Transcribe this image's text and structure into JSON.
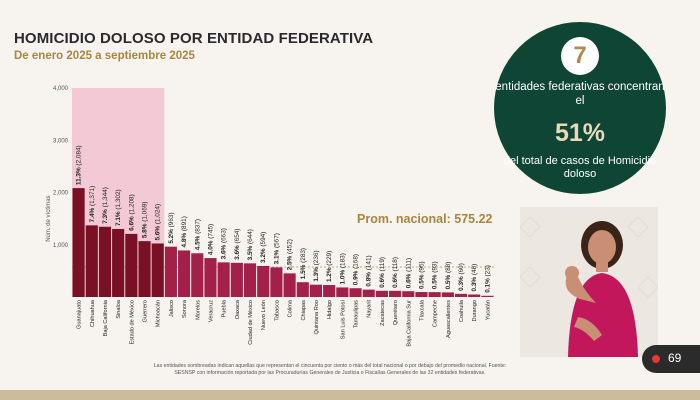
{
  "header": {
    "title": "HOMICIDIO DOLOSO POR ENTIDAD FEDERATIVA",
    "subtitle": "De enero 2025 a septiembre 2025"
  },
  "badge": {
    "number": "7",
    "line1": "entidades federativas concentran el",
    "percent": "51%",
    "line2": "del total de casos de Homicidio doloso"
  },
  "average_label": "Prom. nacional: 575.22",
  "footnote": "Las entidades sombreadas indican aquellas que representan el cincuenta por ciento o más del total nacional o por debajo del promedio nacional. Fuente: SESNSP con información reportada por las Procuradurías Generales de Justicia o Fiscalías Generales de las 32 entidades federativas.",
  "live_viewers": "69",
  "colors": {
    "bar_dark": "#7a1026",
    "bar_main": "#a3204a",
    "highlight": "#f2c9d4",
    "badge_bg": "#0f4535",
    "gold": "#a8863f"
  },
  "chart_data": {
    "type": "bar",
    "ylabel": "Núm. de víctimas",
    "ylim": [
      0,
      4000
    ],
    "yticks": [
      "1,000",
      "2,000",
      "3,000",
      "4,000"
    ],
    "average": 575.22,
    "highlighted_count": 7,
    "categories": [
      "Guanajuato",
      "Chihuahua",
      "Baja California",
      "Sinaloa",
      "Estado de México",
      "Guerrero",
      "Michoacán",
      "Jalisco",
      "Sonora",
      "Morelos",
      "Veracruz",
      "Puebla",
      "Oaxaca",
      "Ciudad de México",
      "Nuevo León",
      "Tabasco",
      "Colima",
      "Chiapas",
      "Quintana Roo",
      "Hidalgo",
      "San Luis Potosí",
      "Tamaulipas",
      "Nayarit",
      "Zacatecas",
      "Querétaro",
      "Baja California Sur",
      "Tlaxcala",
      "Campeche",
      "Aguascalientes",
      "Coahuila",
      "Durango",
      "Yucatán"
    ],
    "values": [
      2084,
      1371,
      1344,
      1302,
      1208,
      1069,
      1024,
      963,
      891,
      837,
      745,
      663,
      654,
      644,
      594,
      567,
      452,
      283,
      236,
      229,
      183,
      168,
      141,
      119,
      118,
      111,
      95,
      93,
      88,
      60,
      48,
      23
    ],
    "labels": [
      "11.3% (2,084)",
      "7.4% (1,371)",
      "7.3% (1,344)",
      "7.1% (1,302)",
      "6.6% (1,208)",
      "5.8% (1,069)",
      "5.6% (1,024)",
      "5.2% (963)",
      "4.8% (891)",
      "4.5% (837)",
      "4.0% (745)",
      "3.6% (663)",
      "3.6% (654)",
      "3.5% (644)",
      "3.2% (594)",
      "3.1% (567)",
      "2.5% (452)",
      "1.5% (283)",
      "1.3% (236)",
      "1.2% (229)",
      "1.0% (183)",
      "0.9% (168)",
      "0.8% (141)",
      "0.6% (119)",
      "0.6% (118)",
      "0.6% (111)",
      "0.5% (95)",
      "0.5% (93)",
      "0.5% (88)",
      "0.3% (60)",
      "0.3% (48)",
      "0.1% (23)"
    ]
  }
}
